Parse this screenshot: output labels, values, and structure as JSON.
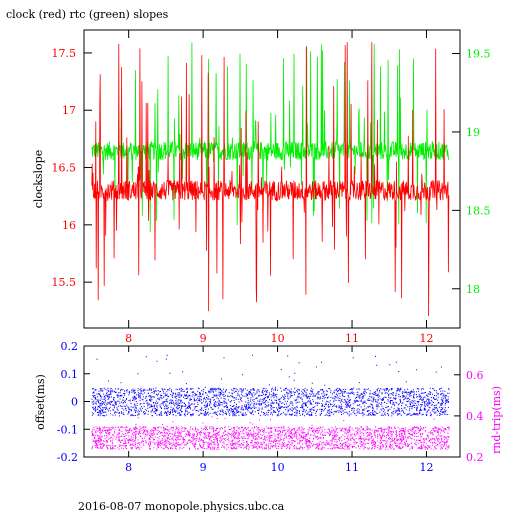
{
  "figure": {
    "title": "clock (red) rtc (green) slopes",
    "footer": "2016-08-07  monopole.physics.ubc.ca"
  },
  "colors": {
    "clock": "#ff0000",
    "rtc": "#00ee00",
    "offset": "#0000ff",
    "rndtrip": "#ff00ff",
    "axis": "#000000"
  },
  "chart_data": [
    {
      "type": "line",
      "title": "clock (red) rtc (green) slopes",
      "ylabel": "clockslope",
      "xlim": [
        7.4,
        12.45
      ],
      "xticks": [
        "8",
        "9",
        "10",
        "11",
        "12"
      ],
      "ylim": [
        15.1,
        17.7
      ],
      "yticks": [
        "15.5",
        "16",
        "16.5",
        "17",
        "17.5"
      ],
      "y2lim": [
        17.75,
        19.65
      ],
      "y2ticks": [
        "18",
        "18.5",
        "19",
        "19.5"
      ],
      "series": [
        {
          "name": "clock",
          "axis": "left",
          "x_range": [
            7.5,
            12.3
          ],
          "baseline": 16.3,
          "spike_range": [
            15.2,
            17.6
          ]
        },
        {
          "name": "rtc",
          "axis": "right",
          "x_range": [
            7.5,
            12.3
          ],
          "baseline": 18.88,
          "spike_range": [
            18.35,
            19.57
          ]
        }
      ],
      "grid": false
    },
    {
      "type": "scatter",
      "ylabel": "offset(ms)",
      "y2label": "rnd-trip(ms)",
      "xlim": [
        7.4,
        12.45
      ],
      "xticks": [
        "8",
        "9",
        "10",
        "11",
        "12"
      ],
      "ylim": [
        -0.2,
        0.2
      ],
      "yticks": [
        "-0.2",
        "-0.1",
        "0",
        "0.1",
        "0.2"
      ],
      "y2lim": [
        0.2,
        0.74
      ],
      "y2ticks": [
        "0.2",
        "0.4",
        "0.6"
      ],
      "series": [
        {
          "name": "offset",
          "axis": "left",
          "x_range": [
            7.5,
            12.3
          ],
          "band": [
            -0.05,
            0.05
          ]
        },
        {
          "name": "rnd-trip",
          "axis": "right",
          "x_range": [
            7.5,
            12.3
          ],
          "band": [
            0.24,
            0.35
          ]
        }
      ],
      "grid": false
    }
  ]
}
